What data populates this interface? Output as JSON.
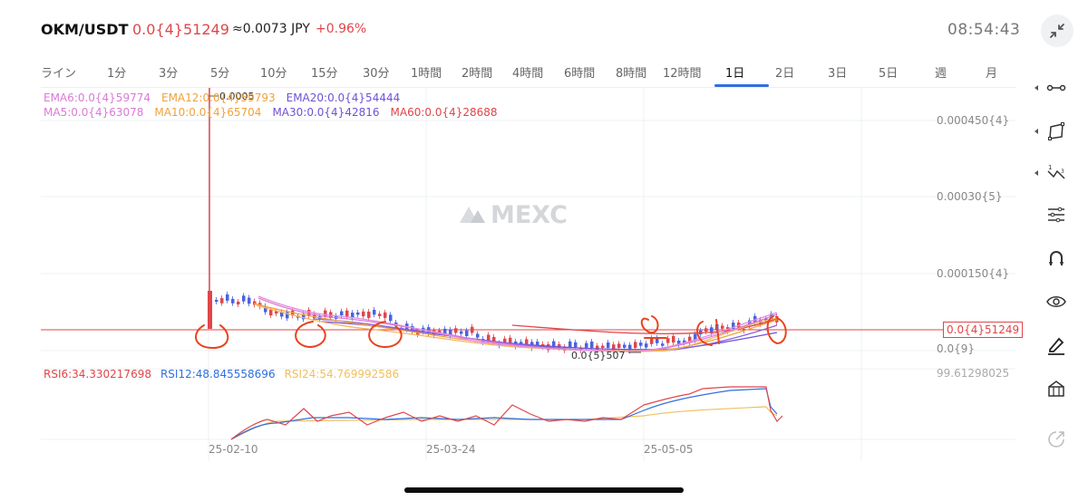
{
  "header": {
    "pair": "OKM/USDT",
    "price": "0.0{4}51249",
    "jpy": "≈0.0073 JPY",
    "change": "+0.96%",
    "time": "08:54:43"
  },
  "tabs": [
    "ライン",
    "1分",
    "3分",
    "5分",
    "10分",
    "15分",
    "30分",
    "1時間",
    "2時間",
    "4時間",
    "6時間",
    "8時間",
    "12時間",
    "1日",
    "2日",
    "3日",
    "5日",
    "週",
    "月"
  ],
  "active_tab": "1日",
  "legend": {
    "ema": [
      {
        "label": "EMA6:0.0{4}59774",
        "color": "#d97bd6"
      },
      {
        "label": "EMA12:0.0{4}59793",
        "color": "#f0a23b"
      },
      {
        "label": "EMA20:0.0{4}54444",
        "color": "#6f52d6"
      }
    ],
    "ma": [
      {
        "label": "MA5:0.0{4}63078",
        "color": "#d97bd6"
      },
      {
        "label": "MA10:0.0{4}65704",
        "color": "#f0a23b"
      },
      {
        "label": "MA30:0.0{4}42816",
        "color": "#6f52d6"
      },
      {
        "label": "MA60:0.0{4}28688",
        "color": "#e0464a"
      }
    ]
  },
  "price_axis": [
    "0.000450{4}",
    "0.00030{5}",
    "0.000150{4}",
    "0.0{9}"
  ],
  "current_price_tag": "0.0{4}51249",
  "high_annotation": "0.0005",
  "low_annotation": "0.0{5}507",
  "rsi": [
    {
      "label": "RSI6:34.330217698",
      "color": "#e0464a"
    },
    {
      "label": "RSI12:48.845558696",
      "color": "#2f6fe0"
    },
    {
      "label": "RSI24:54.769992586",
      "color": "#f0c060"
    }
  ],
  "rsi_axis": "99.61298025",
  "dates": [
    "25-02-10",
    "25-03-24",
    "25-05-05"
  ],
  "watermark": "MEXC",
  "toolbar": [
    "line-segment-icon",
    "polygon-icon",
    "fibonacci-icon",
    "parallel-lines-icon",
    "magnet-icon",
    "eye-icon",
    "pen-icon",
    "ruler-icon",
    "share-icon"
  ],
  "colors": {
    "up": "#e0464a",
    "down": "#4a63e0",
    "accent": "#2f6fe0",
    "annotation": "#e8441e"
  }
}
